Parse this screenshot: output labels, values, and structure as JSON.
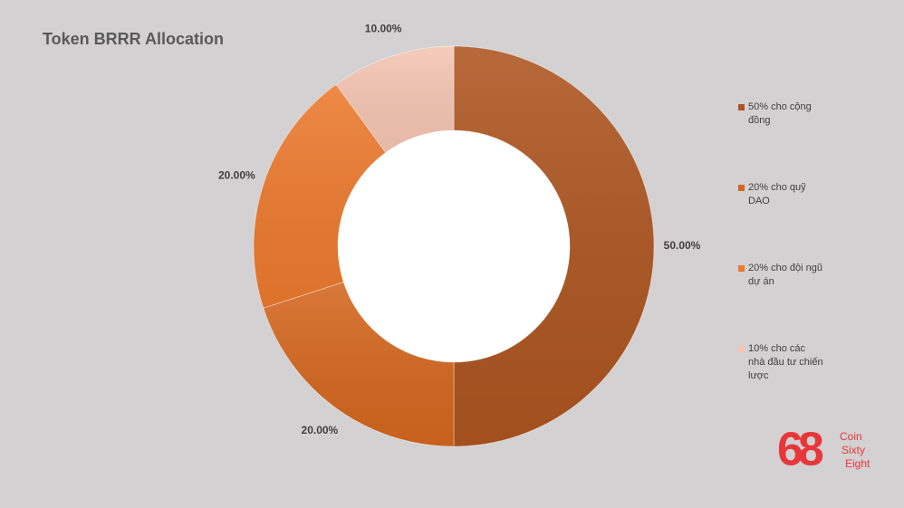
{
  "chart_data": {
    "type": "donut",
    "title": "Token BRRR Allocation",
    "categories": [
      "50% cho cộng đồng",
      "20% cho quỹ DAO",
      "20% cho đội ngũ dự án",
      "10% cho các nhà đầu tư chiến lược"
    ],
    "values": [
      50,
      20,
      20,
      10
    ],
    "value_labels": [
      "50.00%",
      "20.00%",
      "20.00%",
      "10.00%"
    ],
    "colors": [
      "#ad5520",
      "#d4671f",
      "#ec7a2e",
      "#f5c5b3"
    ],
    "legend": "right"
  },
  "logo": {
    "mark": "68",
    "lines": [
      "Coin",
      "Sixty",
      "Eight"
    ]
  }
}
